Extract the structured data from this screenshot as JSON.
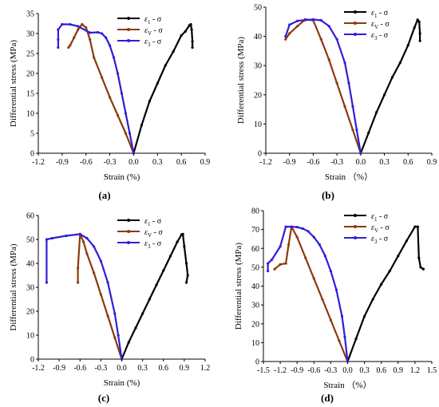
{
  "chart_data": [
    {
      "type": "line",
      "panel_label": "(a)",
      "xlabel": "Strain (%)",
      "ylabel": "Differential stress (MPa)",
      "xlim": [
        -1.2,
        0.9
      ],
      "ylim": [
        0,
        35
      ],
      "xticks": [
        -1.2,
        -0.9,
        -0.6,
        -0.3,
        0.0,
        0.3,
        0.6,
        0.9
      ],
      "yticks": [
        0,
        5,
        10,
        15,
        20,
        25,
        30,
        35
      ],
      "xtick_labels": [
        "-1.2",
        "-0.9",
        "-0.6",
        "-0.3",
        "0.0",
        "0.3",
        "0.6",
        "0.9"
      ],
      "ytick_labels": [
        "0",
        "5",
        "10",
        "15",
        "20",
        "25",
        "30",
        "35"
      ],
      "legend_position": "top-right",
      "series": [
        {
          "name": "ε1 - σ",
          "label_main": "ε",
          "label_sub": "1",
          "label_tail": " - σ",
          "color": "#000000",
          "x": [
            0.0,
            0.1,
            0.2,
            0.3,
            0.4,
            0.5,
            0.6,
            0.65,
            0.7,
            0.72,
            0.73,
            0.74,
            0.74
          ],
          "y": [
            0,
            7,
            13,
            17.5,
            22,
            25.5,
            29.5,
            30.5,
            32,
            32.3,
            31,
            28,
            26.5
          ]
        },
        {
          "name": "εv - σ",
          "label_main": "ε",
          "label_sub": "V",
          "label_tail": " - σ",
          "color": "#8B3A0E",
          "x": [
            0.0,
            -0.1,
            -0.2,
            -0.3,
            -0.4,
            -0.5,
            -0.55,
            -0.6,
            -0.65,
            -0.7,
            -0.75,
            -0.8,
            -0.82
          ],
          "y": [
            0,
            5,
            9.5,
            14,
            19,
            24,
            28.5,
            31.5,
            32.3,
            31,
            29,
            27,
            26.5
          ]
        },
        {
          "name": "ε3 - σ",
          "label_main": "ε",
          "label_sub": "3",
          "label_tail": " - σ",
          "color": "#2E1FD6",
          "x": [
            0.0,
            -0.05,
            -0.1,
            -0.15,
            -0.2,
            -0.25,
            -0.3,
            -0.35,
            -0.4,
            -0.45,
            -0.55,
            -0.7,
            -0.8,
            -0.9,
            -0.95,
            -0.95,
            -0.95
          ],
          "y": [
            0,
            5,
            10,
            15,
            20,
            24,
            27,
            29,
            30,
            30.3,
            30.2,
            31.8,
            32.3,
            32.3,
            31,
            28.5,
            26.5
          ]
        }
      ]
    },
    {
      "type": "line",
      "panel_label": "(b)",
      "xlabel": "Strain （%）",
      "ylabel": "Differential stress (MPa)",
      "xlim": [
        -1.2,
        0.9
      ],
      "ylim": [
        0,
        50
      ],
      "xticks": [
        -1.2,
        -0.9,
        -0.6,
        -0.3,
        0.0,
        0.3,
        0.6,
        0.9
      ],
      "yticks": [
        0,
        10,
        20,
        30,
        40,
        50
      ],
      "xtick_labels": [
        "-1.2",
        "-0.9",
        "-0.6",
        "-0.3",
        "0.0",
        "0.3",
        "0.6",
        "0.9"
      ],
      "ytick_labels": [
        "0",
        "10",
        "20",
        "30",
        "40",
        "50"
      ],
      "legend_position": "top-right",
      "series": [
        {
          "name": "ε1 - σ",
          "label_main": "ε",
          "label_sub": "1",
          "label_tail": " - σ",
          "color": "#000000",
          "x": [
            0.0,
            0.1,
            0.2,
            0.3,
            0.4,
            0.5,
            0.6,
            0.68,
            0.72,
            0.74,
            0.75,
            0.75
          ],
          "y": [
            0,
            7,
            14,
            20,
            26,
            31,
            37,
            43,
            45.7,
            45,
            41,
            38.5
          ]
        },
        {
          "name": "εv - σ",
          "label_main": "ε",
          "label_sub": "V",
          "label_tail": " - σ",
          "color": "#8B3A0E",
          "x": [
            0.0,
            -0.1,
            -0.2,
            -0.3,
            -0.4,
            -0.5,
            -0.6,
            -0.7,
            -0.8,
            -0.9,
            -0.95
          ],
          "y": [
            0,
            8,
            16,
            24,
            32,
            39,
            45.5,
            45.8,
            43.5,
            41,
            39
          ]
        },
        {
          "name": "ε3 - σ",
          "label_main": "ε",
          "label_sub": "3",
          "label_tail": " - σ",
          "color": "#2E1FD6",
          "x": [
            0.0,
            -0.05,
            -0.1,
            -0.15,
            -0.2,
            -0.3,
            -0.4,
            -0.5,
            -0.6,
            -0.7,
            -0.8,
            -0.9,
            -0.95
          ],
          "y": [
            0,
            8,
            16,
            24,
            31,
            39,
            43.5,
            45.5,
            45.8,
            45.6,
            45.3,
            44,
            40
          ]
        }
      ]
    },
    {
      "type": "line",
      "panel_label": "(c)",
      "xlabel": "Strain (%)",
      "ylabel": "Differential stress (MPa)",
      "xlim": [
        -1.2,
        1.2
      ],
      "ylim": [
        0,
        60
      ],
      "xticks": [
        -1.2,
        -0.9,
        -0.6,
        -0.3,
        0.0,
        0.3,
        0.6,
        0.9,
        1.2
      ],
      "yticks": [
        0,
        10,
        20,
        30,
        40,
        50,
        60
      ],
      "xtick_labels": [
        "-1.2",
        "-0.9",
        "-0.6",
        "-0.3",
        "0.0",
        "0.3",
        "0.6",
        "0.9",
        "1.2"
      ],
      "ytick_labels": [
        "0",
        "10",
        "20",
        "30",
        "40",
        "50",
        "60"
      ],
      "legend_position": "top-right",
      "series": [
        {
          "name": "ε1 - σ",
          "label_main": "ε",
          "label_sub": "1",
          "label_tail": " - σ",
          "color": "#000000",
          "x": [
            0.0,
            0.1,
            0.2,
            0.3,
            0.4,
            0.5,
            0.6,
            0.7,
            0.8,
            0.86,
            0.88,
            0.9,
            0.93,
            0.95,
            0.93
          ],
          "y": [
            0,
            7,
            13,
            19,
            25,
            31,
            37,
            43,
            49,
            52,
            52.2,
            47,
            40,
            35,
            32
          ]
        },
        {
          "name": "εv - σ",
          "label_main": "ε",
          "label_sub": "V",
          "label_tail": " - σ",
          "color": "#8B3A0E",
          "x": [
            0.0,
            -0.1,
            -0.2,
            -0.3,
            -0.4,
            -0.5,
            -0.55,
            -0.6,
            -0.63,
            -0.63
          ],
          "y": [
            0,
            9,
            18,
            27,
            36,
            44,
            49,
            52.2,
            38,
            32
          ]
        },
        {
          "name": "ε3 - σ",
          "label_main": "ε",
          "label_sub": "3",
          "label_tail": " - σ",
          "color": "#2E1FD6",
          "x": [
            0.0,
            -0.05,
            -0.1,
            -0.2,
            -0.3,
            -0.4,
            -0.5,
            -0.6,
            -0.8,
            -1.0,
            -1.08,
            -1.08
          ],
          "y": [
            0,
            10,
            19,
            32,
            41,
            47,
            50.5,
            52.2,
            51.5,
            50.5,
            50,
            32
          ]
        }
      ]
    },
    {
      "type": "line",
      "panel_label": "(d)",
      "xlabel": "Strain （%）",
      "ylabel": "Differential stress (MPa)",
      "xlim": [
        -1.5,
        1.5
      ],
      "ylim": [
        0,
        80
      ],
      "xticks": [
        -1.5,
        -1.2,
        -0.9,
        -0.6,
        -0.3,
        0.0,
        0.3,
        0.6,
        0.9,
        1.2,
        1.5
      ],
      "yticks": [
        0,
        10,
        20,
        30,
        40,
        50,
        60,
        70,
        80
      ],
      "xtick_labels": [
        "-1.5",
        "-1.2",
        "-0.9",
        "-0.6",
        "-0.3",
        "0.0",
        "0.3",
        "0.6",
        "0.9",
        "1.2",
        "1.5"
      ],
      "ytick_labels": [
        "0",
        "10",
        "20",
        "30",
        "40",
        "50",
        "60",
        "70",
        "80"
      ],
      "legend_position": "top-right",
      "series": [
        {
          "name": "ε1 - σ",
          "label_main": "ε",
          "label_sub": "1",
          "label_tail": " - σ",
          "color": "#000000",
          "x": [
            0.0,
            0.15,
            0.3,
            0.45,
            0.6,
            0.75,
            0.9,
            1.05,
            1.2,
            1.25,
            1.27,
            1.3,
            1.35
          ],
          "y": [
            0,
            12,
            24,
            33,
            41,
            48,
            56,
            64,
            71.5,
            71.5,
            55,
            50,
            49
          ]
        },
        {
          "name": "εv - σ",
          "label_main": "ε",
          "label_sub": "V",
          "label_tail": " - σ",
          "color": "#8B3A0E",
          "x": [
            0.0,
            -0.15,
            -0.3,
            -0.45,
            -0.6,
            -0.75,
            -0.9,
            -1.0,
            -1.05,
            -1.1,
            -1.2,
            -1.3
          ],
          "y": [
            0,
            11,
            22,
            33,
            44,
            55,
            66,
            71.5,
            62,
            52,
            51.5,
            49
          ]
        },
        {
          "name": "ε3 - σ",
          "label_main": "ε",
          "label_sub": "3",
          "label_tail": " - σ",
          "color": "#2E1FD6",
          "x": [
            0.0,
            -0.05,
            -0.1,
            -0.2,
            -0.3,
            -0.4,
            -0.5,
            -0.6,
            -0.7,
            -0.8,
            -0.9,
            -1.0,
            -1.1,
            -1.2,
            -1.35,
            -1.42,
            -1.42
          ],
          "y": [
            0,
            13,
            24,
            38,
            48,
            56,
            62,
            66,
            69,
            70.5,
            71.3,
            71.5,
            71.5,
            61,
            54,
            52,
            48
          ]
        }
      ]
    }
  ]
}
